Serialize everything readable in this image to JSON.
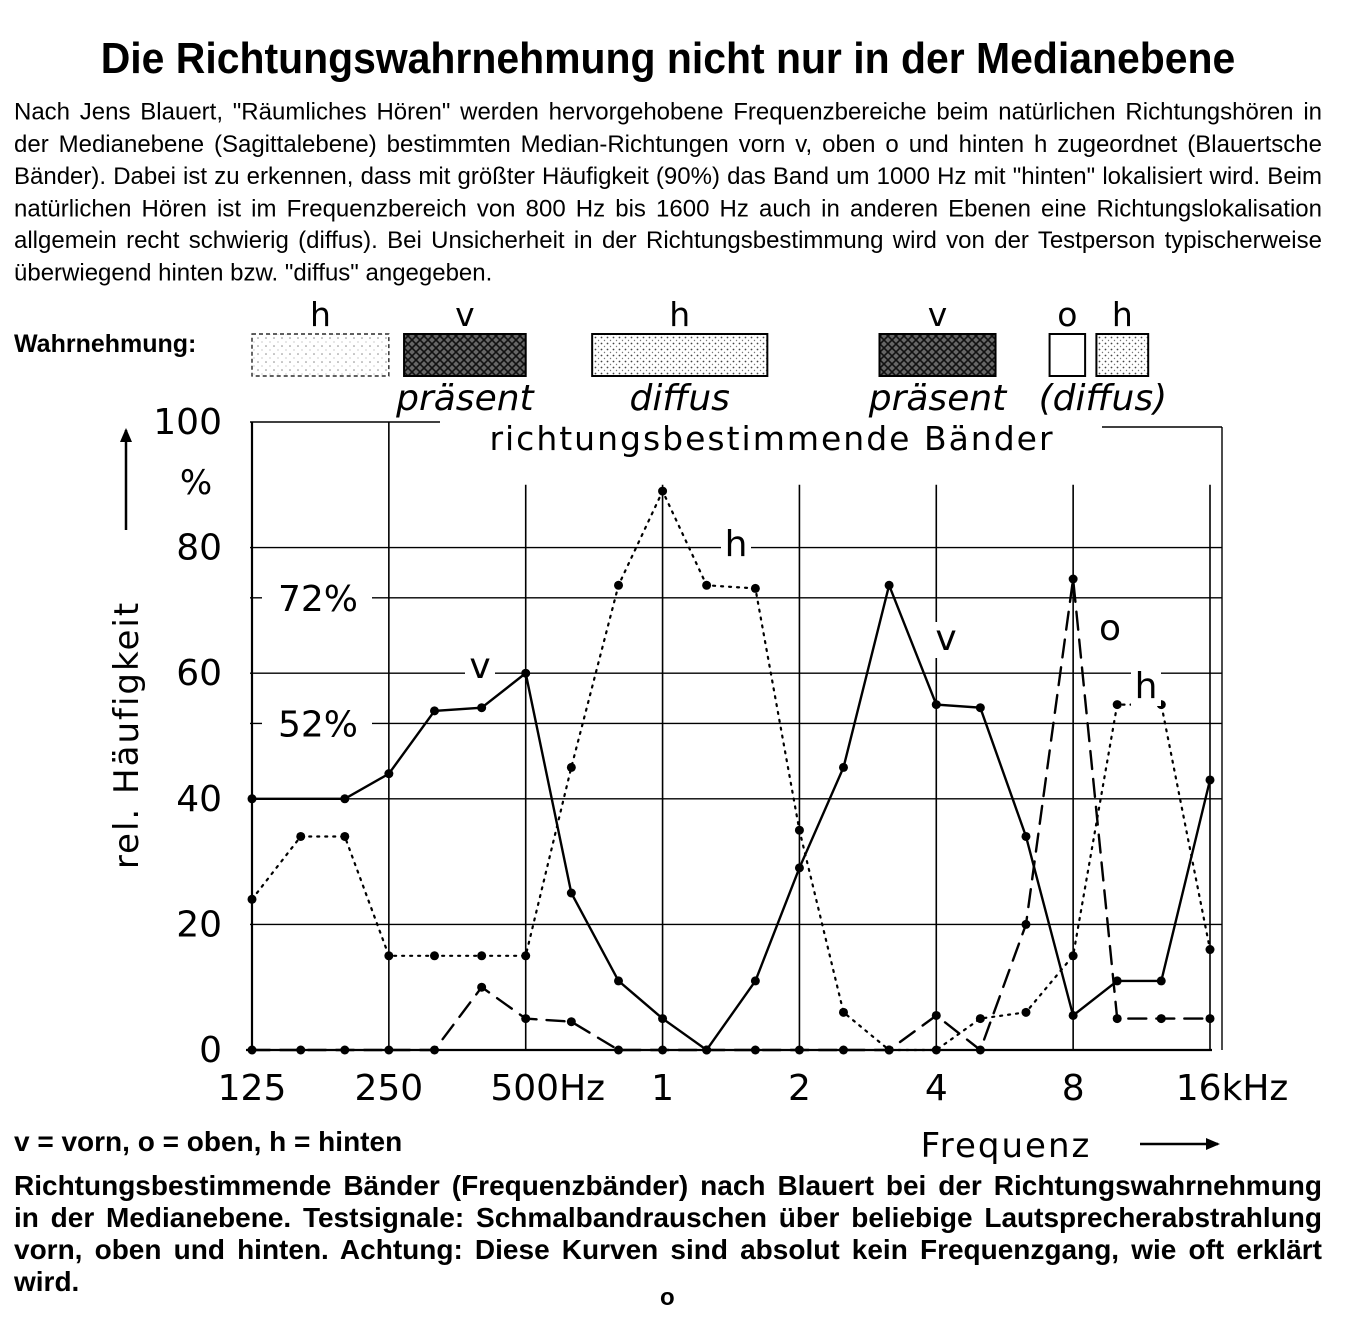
{
  "title": "Die Richtungswahrnehmung nicht nur in der Medianebene",
  "intro": "Nach Jens Blauert, \"Räumliches Hören\" werden hervorgehobene Frequenzbereiche beim natürlichen Richtungshören in der Medianebene (Sagittalebene) bestimmten Median-Richtungen vorn v, oben o und hinten h zugeordnet (Blauertsche Bänder). Dabei ist zu erkennen, dass mit größter Häufigkeit (90%) das Band um 1000 Hz mit \"hinten\" lokalisiert wird. Beim natürlichen Hören ist im Frequenzbereich von 800 Hz bis 1600 Hz auch in anderen Ebenen eine Richtungslokalisation allgemein recht schwierig (diffus). Bei Unsicherheit in der Richtungsbestimmung wird von der Testperson typischerweise überwiegend hinten bzw. \"diffus\" angegeben.",
  "perception_label": "Wahrnehmung:",
  "legend_short": "v = vorn, o = oben, h = hinten",
  "caption": "Richtungsbestimmende Bänder (Frequenzbänder) nach Blauert bei der Richtungswahrnehmung in der Medianebene. Testsignale: Schmalbandrauschen über beliebige Lautsprecherabstrahlung vorn, oben und hinten. Achtung: Diese Kurven sind absolut kein Frequenzgang, wie oft erklärt wird.",
  "stray_mark": "o",
  "chart_data": {
    "type": "line",
    "xscale": "log",
    "x_ticks": [
      {
        "label": "125",
        "hz": 125
      },
      {
        "label": "250",
        "hz": 250
      },
      {
        "label": "500Hz",
        "hz": 500
      },
      {
        "label": "1",
        "hz": 1000
      },
      {
        "label": "2",
        "hz": 2000
      },
      {
        "label": "4",
        "hz": 4000
      },
      {
        "label": "8",
        "hz": 8000
      },
      {
        "label": "16kHz",
        "hz": 16000
      }
    ],
    "y_ticks": [
      "0",
      "20",
      "40",
      "60",
      "80",
      "100"
    ],
    "y_unit": "%",
    "ylim": [
      0,
      100
    ],
    "xlabel": "Frequenz",
    "ylabel": "rel. Häufigkeit",
    "band_header": "richtungsbestimmende Bänder",
    "reference_lines": [
      {
        "label": "72%",
        "value": 72
      },
      {
        "label": "52%",
        "value": 52
      }
    ],
    "bands": [
      {
        "letter": "h",
        "word": "",
        "pattern": "dots-light",
        "from_hz": 125,
        "to_hz": 250
      },
      {
        "letter": "v",
        "word": "präsent",
        "pattern": "crosshatch",
        "from_hz": 270,
        "to_hz": 500
      },
      {
        "letter": "h",
        "word": "diffus",
        "pattern": "dots",
        "from_hz": 700,
        "to_hz": 1700
      },
      {
        "letter": "v",
        "word": "präsent",
        "pattern": "crosshatch",
        "from_hz": 3000,
        "to_hz": 5400
      },
      {
        "letter": "o",
        "word": "",
        "pattern": "empty",
        "from_hz": 7100,
        "to_hz": 8500
      },
      {
        "letter": "h",
        "word": "",
        "pattern": "dots",
        "from_hz": 9000,
        "to_hz": 11700
      }
    ],
    "band_word_diffus_paren": "(diffus)",
    "series": [
      {
        "label": "v",
        "style": "solid",
        "x": [
          125,
          200,
          250,
          315,
          400,
          500,
          630,
          800,
          1000,
          1250,
          1600,
          2000,
          2500,
          3150,
          4000,
          5000,
          6300,
          8000,
          10000,
          12500,
          16000
        ],
        "y": [
          40,
          40,
          44,
          54,
          54.5,
          60,
          25,
          11,
          5,
          0,
          11,
          29,
          45,
          74,
          55,
          54.5,
          34,
          5.5,
          11,
          11,
          43
        ]
      },
      {
        "label": "h",
        "style": "dotted",
        "x": [
          125,
          160,
          200,
          250,
          315,
          400,
          500,
          630,
          800,
          1000,
          1250,
          1600,
          2000,
          2500,
          3150,
          4000,
          5000,
          6300,
          8000,
          10000,
          12500,
          16000
        ],
        "y": [
          24,
          34,
          34,
          15,
          15,
          15,
          15,
          45,
          74,
          89,
          74,
          73.5,
          35,
          6,
          0,
          0,
          5,
          6,
          15,
          55,
          55,
          16
        ]
      },
      {
        "label": "o",
        "style": "dashed",
        "x": [
          125,
          160,
          200,
          250,
          315,
          400,
          500,
          630,
          800,
          1000,
          1250,
          1600,
          2000,
          2500,
          3150,
          4000,
          5000,
          6300,
          8000,
          10000,
          12500,
          16000
        ],
        "y": [
          0,
          0,
          0,
          0,
          0,
          10,
          5,
          4.5,
          0,
          0,
          0,
          0,
          0,
          0,
          0,
          5.5,
          0,
          20,
          75,
          5,
          5,
          5
        ]
      }
    ]
  }
}
